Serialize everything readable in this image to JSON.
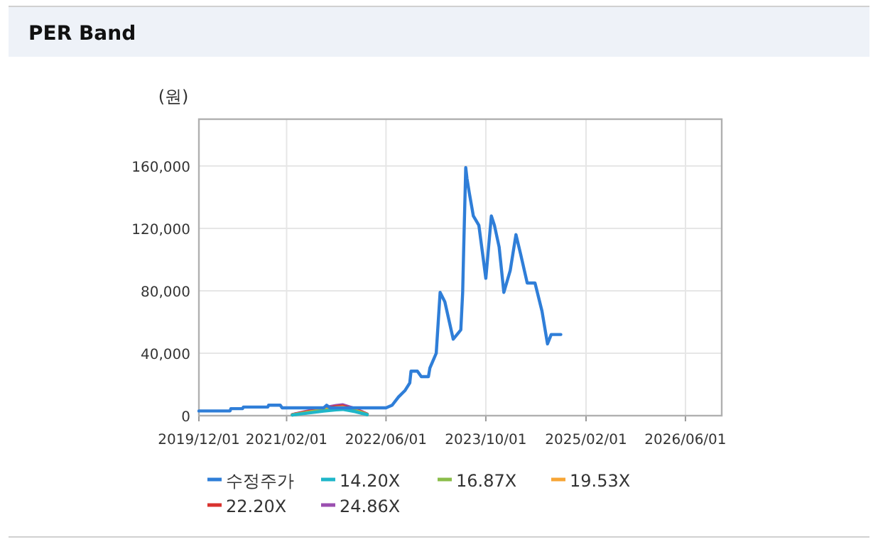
{
  "chart_data": {
    "type": "line",
    "title": "PER Band",
    "ylabel": "(원)",
    "xlim": [
      "2019-12-01",
      "2026-11-25"
    ],
    "xticks": [
      {
        "value": "2019-12-01",
        "label": "2019/12/01"
      },
      {
        "value": "2021-02-01",
        "label": "2021/02/01"
      },
      {
        "value": "2022-06-01",
        "label": "2022/06/01"
      },
      {
        "value": "2023-10-01",
        "label": "2023/10/01"
      },
      {
        "value": "2025-02-01",
        "label": "2025/02/01"
      },
      {
        "value": "2026-06-01",
        "label": "2026/06/01"
      }
    ],
    "ylim": [
      0,
      190000
    ],
    "yticks": [
      0,
      {
        "value": 40000,
        "label": "40,000"
      },
      {
        "value": 80000,
        "label": "80,000"
      },
      {
        "value": 120000,
        "label": "120,000"
      },
      {
        "value": 160000,
        "label": "160,000"
      }
    ],
    "grid": true,
    "legend": "bottom",
    "series": [
      {
        "name": "수정주가",
        "color": "#2f7ed8",
        "x": [
          "2019-12-01",
          "2020-05-01",
          "2020-05-05",
          "2020-07-01",
          "2020-07-05",
          "2020-11-01",
          "2020-11-05",
          "2021-01-01",
          "2021-01-10",
          "2021-08-01",
          "2021-08-15",
          "2021-09-01",
          "2022-06-01",
          "2022-07-01",
          "2022-08-01",
          "2022-09-01",
          "2022-09-25",
          "2022-10-01",
          "2022-11-01",
          "2022-11-20",
          "2022-12-25",
          "2023-01-01",
          "2023-02-01",
          "2023-02-20",
          "2023-03-15",
          "2023-04-25",
          "2023-05-20",
          "2023-06-01",
          "2023-06-10",
          "2023-06-15",
          "2023-06-25",
          "2023-07-01",
          "2023-07-12",
          "2023-08-01",
          "2023-08-28",
          "2023-10-01",
          "2023-10-28",
          "2023-11-12",
          "2023-12-05",
          "2023-12-28",
          "2024-01-28",
          "2024-02-25",
          "2024-03-18",
          "2024-04-20",
          "2024-05-28",
          "2024-07-01",
          "2024-07-28",
          "2024-08-15",
          "2024-10-01"
        ],
        "values": [
          3000,
          3000,
          4500,
          4500,
          5500,
          5500,
          6700,
          6700,
          5000,
          5000,
          6700,
          5000,
          5000,
          6700,
          12000,
          16000,
          21000,
          28500,
          28500,
          25000,
          25000,
          30500,
          40000,
          79000,
          73000,
          49000,
          53000,
          55000,
          79000,
          107000,
          159000,
          152000,
          143000,
          128000,
          122000,
          88000,
          128000,
          122000,
          108000,
          79000,
          93000,
          116000,
          104000,
          85000,
          85000,
          67000,
          46000,
          52000,
          52000
        ]
      },
      {
        "name": "14.20X",
        "color": "#1fb6c9",
        "x": [
          "2021-03-01",
          "2021-05-01",
          "2021-08-01",
          "2021-10-01",
          "2021-11-01",
          "2022-01-01",
          "2022-03-01"
        ],
        "values": [
          400,
          1400,
          2900,
          3700,
          4000,
          2600,
          600
        ]
      },
      {
        "name": "16.87X",
        "color": "#8bbd4a",
        "x": [
          "2021-03-01",
          "2021-05-01",
          "2021-08-01",
          "2021-10-01",
          "2021-11-01",
          "2022-01-01",
          "2022-03-01"
        ],
        "values": [
          450,
          1700,
          3400,
          4400,
          4800,
          3100,
          700
        ]
      },
      {
        "name": "19.53X",
        "color": "#f7a535",
        "x": [
          "2021-03-01",
          "2021-05-01",
          "2021-08-01",
          "2021-10-01",
          "2021-11-01",
          "2022-01-01",
          "2022-03-01"
        ],
        "values": [
          500,
          1900,
          3900,
          5100,
          5500,
          3500,
          800
        ]
      },
      {
        "name": "22.20X",
        "color": "#d9322e",
        "x": [
          "2021-03-01",
          "2021-05-01",
          "2021-08-01",
          "2021-10-01",
          "2021-11-01",
          "2022-01-01",
          "2022-03-01"
        ],
        "values": [
          600,
          2200,
          4500,
          5800,
          6200,
          4000,
          900
        ]
      },
      {
        "name": "24.86X",
        "color": "#9b4fb0",
        "x": [
          "2021-03-01",
          "2021-05-01",
          "2021-08-01",
          "2021-10-01",
          "2021-11-01",
          "2022-01-01",
          "2022-03-01"
        ],
        "values": [
          700,
          2500,
          5000,
          6500,
          7000,
          4500,
          1000
        ]
      }
    ]
  }
}
